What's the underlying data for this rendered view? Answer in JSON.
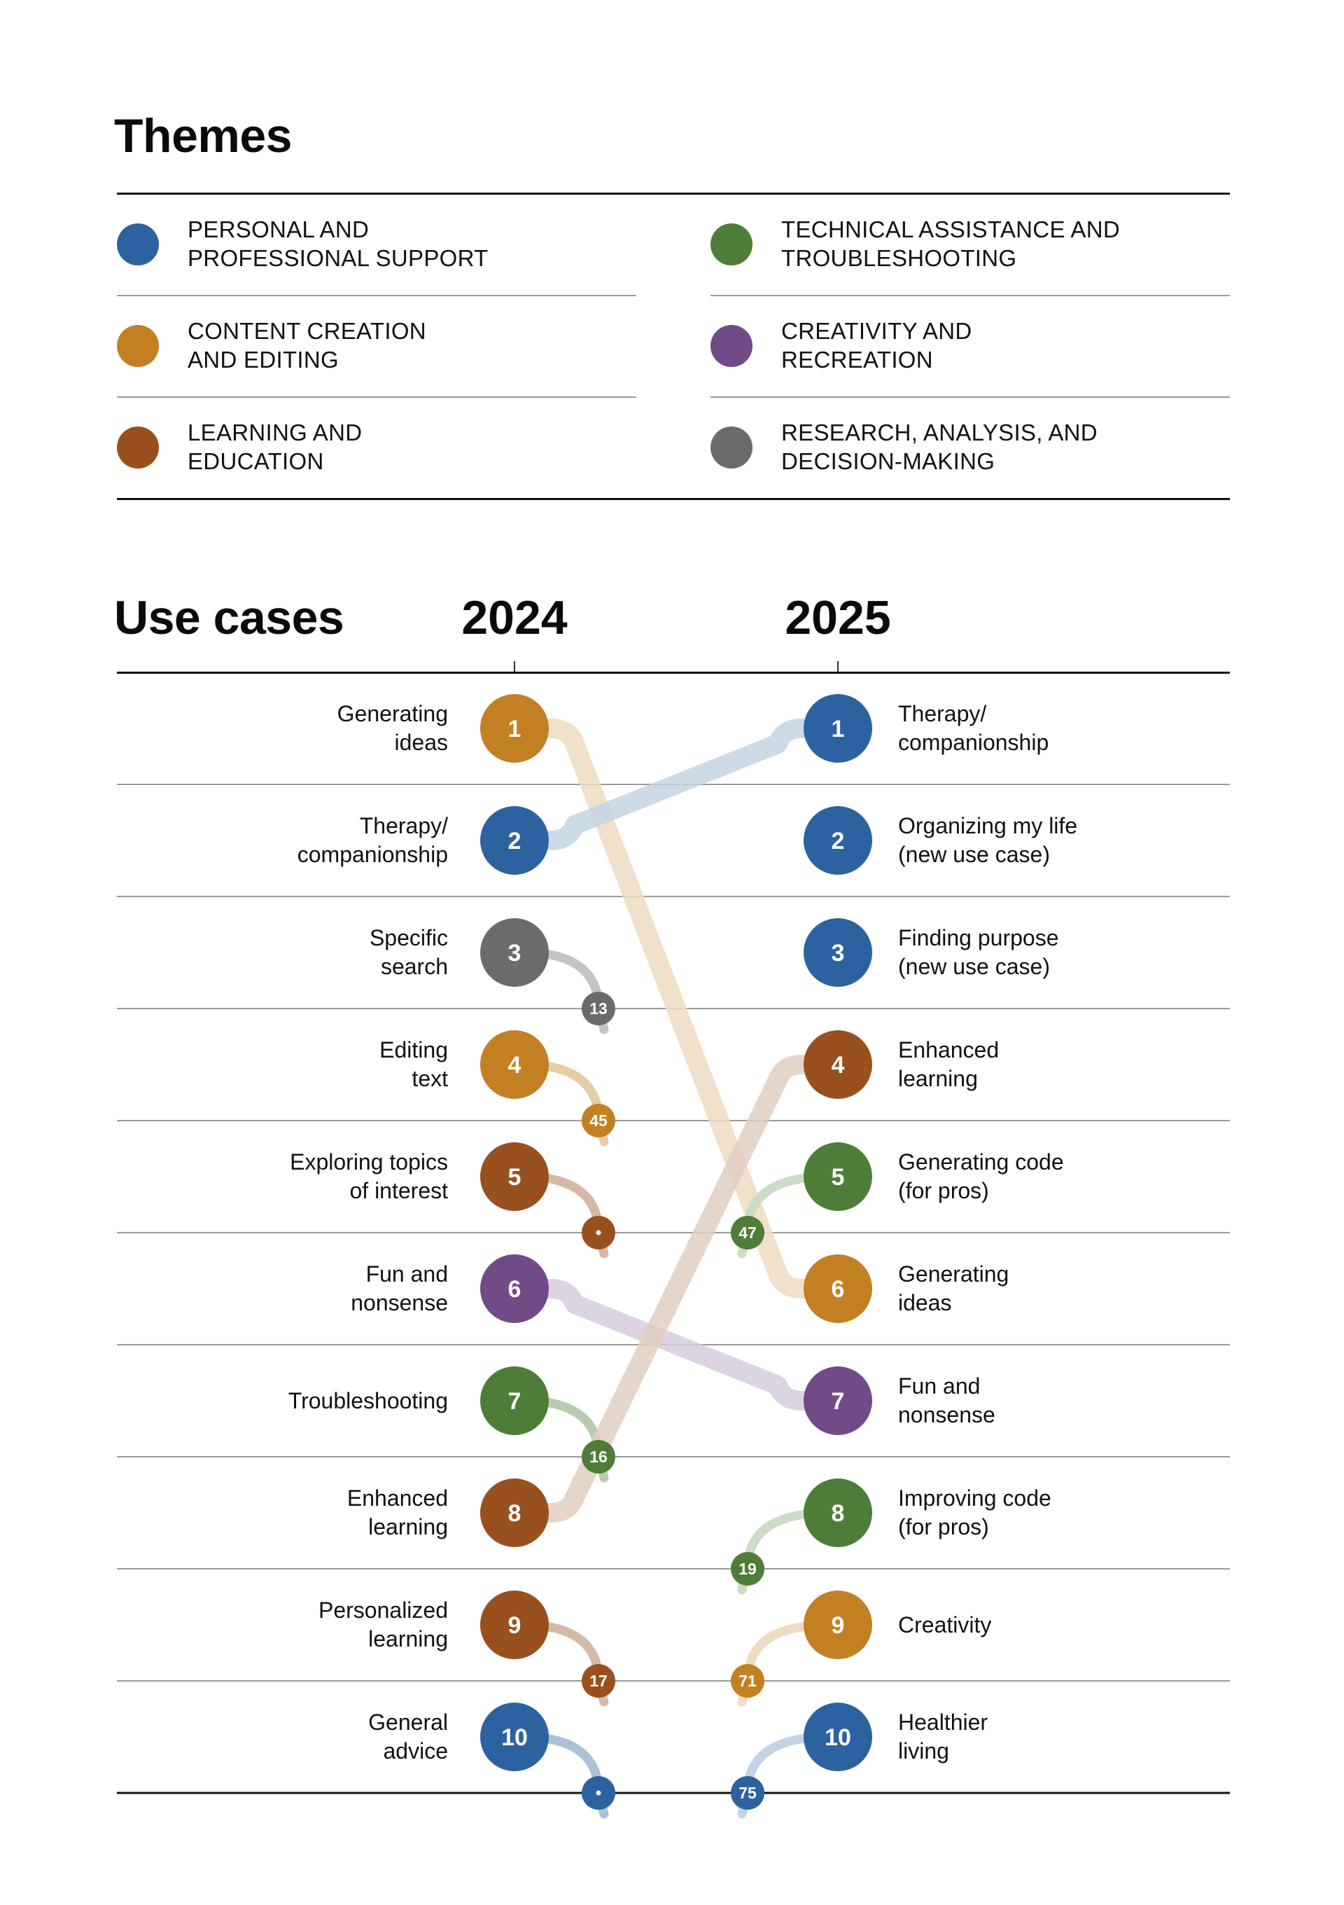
{
  "themes_title": "Themes",
  "themes": [
    {
      "id": "personal",
      "label": "Personal and\nprofessional support",
      "color": "#2D62A0"
    },
    {
      "id": "content",
      "label": "Content creation\nand editing",
      "color": "#C28022"
    },
    {
      "id": "learning",
      "label": "Learning and\neducation",
      "color": "#98501E"
    },
    {
      "id": "technical",
      "label": "Technical assistance and\ntroubleshooting",
      "color": "#4E7D37"
    },
    {
      "id": "creativity",
      "label": "Creativity and\nrecreation",
      "color": "#714A88"
    },
    {
      "id": "research",
      "label": "Research, analysis, and\ndecision-making",
      "color": "#6B6B6B"
    }
  ],
  "use_cases_title": "Use cases",
  "chart_data": {
    "type": "table",
    "title": "Use cases",
    "columns": [
      "2024",
      "2025"
    ],
    "description": "Bump chart of top 10 use case rankings, 2024 vs 2025",
    "rank_2024": [
      {
        "rank": 1,
        "label": "Generating\nideas",
        "theme": "content",
        "rank_2025": 6
      },
      {
        "rank": 2,
        "label": "Therapy/\ncompanionship",
        "theme": "personal",
        "rank_2025": 1
      },
      {
        "rank": 3,
        "label": "Specific\nsearch",
        "theme": "research",
        "rank_2025": 13
      },
      {
        "rank": 4,
        "label": "Editing\ntext",
        "theme": "content",
        "rank_2025": 45
      },
      {
        "rank": 5,
        "label": "Exploring topics\nof interest",
        "theme": "learning",
        "rank_2025": "·"
      },
      {
        "rank": 6,
        "label": "Fun and\nnonsense",
        "theme": "creativity",
        "rank_2025": 7
      },
      {
        "rank": 7,
        "label": "Troubleshooting",
        "theme": "technical",
        "rank_2025": 16
      },
      {
        "rank": 8,
        "label": "Enhanced\nlearning",
        "theme": "learning",
        "rank_2025": 4
      },
      {
        "rank": 9,
        "label": "Personalized\nlearning",
        "theme": "learning",
        "rank_2025": 17
      },
      {
        "rank": 10,
        "label": "General\nadvice",
        "theme": "personal",
        "rank_2025": "·"
      }
    ],
    "rank_2025": [
      {
        "rank": 1,
        "label": "Therapy/\ncompanionship",
        "theme": "personal",
        "rank_2024": 2
      },
      {
        "rank": 2,
        "label": "Organizing my life\n(new use case)",
        "theme": "personal",
        "rank_2024": null
      },
      {
        "rank": 3,
        "label": "Finding purpose\n(new use case)",
        "theme": "personal",
        "rank_2024": null
      },
      {
        "rank": 4,
        "label": "Enhanced\nlearning",
        "theme": "learning",
        "rank_2024": 8
      },
      {
        "rank": 5,
        "label": "Generating code\n(for pros)",
        "theme": "technical",
        "rank_2024": 47
      },
      {
        "rank": 6,
        "label": "Generating\nideas",
        "theme": "content",
        "rank_2024": 1
      },
      {
        "rank": 7,
        "label": "Fun and\nnonsense",
        "theme": "creativity",
        "rank_2024": 6
      },
      {
        "rank": 8,
        "label": "Improving code\n(for pros)",
        "theme": "technical",
        "rank_2024": 19
      },
      {
        "rank": 9,
        "label": "Creativity",
        "theme": "content",
        "rank_2024": 71
      },
      {
        "rank": 10,
        "label": "Healthier\nliving",
        "theme": "personal",
        "rank_2024": 75
      }
    ]
  }
}
